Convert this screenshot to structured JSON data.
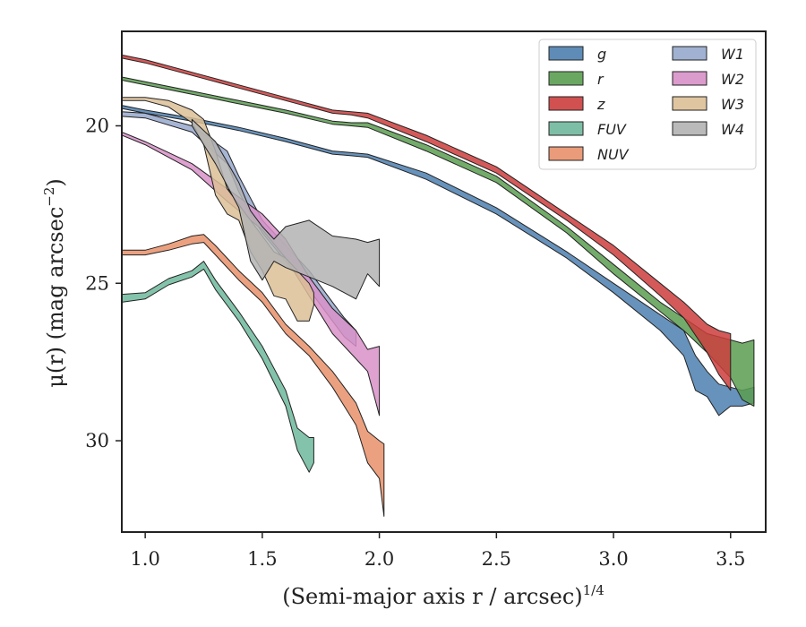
{
  "chart_data": {
    "type": "area",
    "xlabel": "(Semi-major axis r / arcsec)",
    "xlabel_exponent": "1/4",
    "ylabel_prefix": "μ(r) (mag arcsec",
    "ylabel_exponent": "−2",
    "ylabel_suffix": ")",
    "xlim": [
      0.9,
      3.65
    ],
    "ylim": [
      32.9,
      17.0
    ],
    "y_inverted": true,
    "xticks": [
      1.0,
      1.5,
      2.0,
      2.5,
      3.0,
      3.5
    ],
    "xtick_labels": [
      "1.0",
      "1.5",
      "2.0",
      "2.5",
      "3.0",
      "3.5"
    ],
    "yticks": [
      20,
      25,
      30
    ],
    "ytick_labels": [
      "20",
      "25",
      "30"
    ],
    "grid": false,
    "legend_position": "top-right",
    "legend_columns": 2,
    "series": [
      {
        "name": "g",
        "color": "#4c7faf",
        "x": [
          0.9,
          1.0,
          1.2,
          1.4,
          1.6,
          1.8,
          1.88,
          1.95,
          2.2,
          2.5,
          2.8,
          3.0,
          3.2,
          3.3,
          3.35,
          3.4,
          3.45,
          3.5,
          3.55,
          3.6
        ],
        "lo": [
          19.35,
          19.5,
          19.75,
          20.05,
          20.4,
          20.8,
          20.85,
          20.9,
          21.5,
          22.6,
          24.0,
          25.0,
          26.0,
          26.5,
          27.3,
          27.8,
          28.2,
          28.3,
          28.4,
          28.3
        ],
        "hi": [
          19.45,
          19.6,
          19.85,
          20.15,
          20.5,
          20.9,
          20.95,
          21.0,
          21.7,
          22.8,
          24.2,
          25.3,
          26.5,
          27.3,
          28.4,
          28.6,
          29.2,
          28.9,
          28.9,
          28.8
        ]
      },
      {
        "name": "r",
        "color": "#5a9e50",
        "x": [
          0.9,
          1.0,
          1.2,
          1.4,
          1.6,
          1.8,
          1.88,
          1.95,
          2.2,
          2.5,
          2.8,
          3.0,
          3.2,
          3.3,
          3.4,
          3.45,
          3.5,
          3.55,
          3.6
        ],
        "lo": [
          18.45,
          18.6,
          18.9,
          19.2,
          19.5,
          19.85,
          19.9,
          19.9,
          20.6,
          21.6,
          23.2,
          24.4,
          25.6,
          26.1,
          26.6,
          26.7,
          26.8,
          26.9,
          26.8
        ],
        "hi": [
          18.55,
          18.7,
          19.0,
          19.3,
          19.6,
          19.95,
          20.0,
          20.05,
          20.8,
          21.8,
          23.4,
          24.7,
          25.9,
          26.5,
          27.2,
          27.6,
          28.0,
          28.7,
          28.9
        ]
      },
      {
        "name": "z",
        "color": "#cc3d3d",
        "x": [
          0.9,
          1.0,
          1.2,
          1.4,
          1.6,
          1.8,
          1.88,
          1.95,
          2.2,
          2.5,
          2.8,
          3.0,
          3.2,
          3.3,
          3.4,
          3.45,
          3.5
        ],
        "lo": [
          17.75,
          17.9,
          18.3,
          18.7,
          19.1,
          19.5,
          19.55,
          19.6,
          20.3,
          21.3,
          22.8,
          23.8,
          25.0,
          25.6,
          26.3,
          26.5,
          26.6
        ],
        "hi": [
          17.85,
          18.0,
          18.4,
          18.8,
          19.2,
          19.6,
          19.65,
          19.75,
          20.5,
          21.5,
          23.0,
          24.1,
          25.4,
          26.1,
          27.2,
          27.9,
          28.4
        ]
      },
      {
        "name": "FUV",
        "color": "#6fb89c",
        "x": [
          0.9,
          1.0,
          1.1,
          1.2,
          1.25,
          1.3,
          1.4,
          1.5,
          1.6,
          1.65,
          1.7,
          1.72
        ],
        "lo": [
          25.35,
          25.3,
          24.85,
          24.6,
          24.3,
          24.9,
          25.9,
          27.0,
          28.4,
          29.6,
          29.9,
          29.9
        ],
        "hi": [
          25.6,
          25.5,
          25.05,
          24.8,
          24.55,
          25.2,
          26.2,
          27.4,
          28.9,
          30.3,
          31.0,
          30.7
        ]
      },
      {
        "name": "NUV",
        "color": "#e8906a",
        "x": [
          0.9,
          1.0,
          1.1,
          1.2,
          1.25,
          1.3,
          1.4,
          1.5,
          1.6,
          1.7,
          1.8,
          1.9,
          1.95,
          2.0,
          2.02
        ],
        "lo": [
          23.95,
          23.95,
          23.75,
          23.5,
          23.45,
          23.8,
          24.6,
          25.3,
          26.3,
          27.0,
          27.8,
          28.8,
          29.7,
          30.0,
          30.1
        ],
        "hi": [
          24.1,
          24.1,
          23.95,
          23.75,
          23.7,
          24.1,
          24.9,
          25.6,
          26.6,
          27.3,
          28.3,
          29.5,
          30.7,
          31.2,
          32.4
        ]
      },
      {
        "name": "W1",
        "color": "#96a8cc",
        "x": [
          0.9,
          1.0,
          1.2,
          1.35,
          1.4,
          1.45,
          1.5,
          1.6,
          1.7,
          1.8,
          1.85,
          1.9
        ],
        "lo": [
          19.55,
          19.6,
          20.0,
          20.8,
          21.6,
          22.3,
          23.0,
          23.8,
          24.6,
          25.6,
          26.1,
          26.5
        ],
        "hi": [
          19.7,
          19.75,
          20.2,
          21.2,
          22.1,
          22.8,
          23.4,
          24.3,
          25.2,
          26.2,
          26.7,
          27.0
        ]
      },
      {
        "name": "W2",
        "color": "#d890c8",
        "x": [
          0.9,
          1.0,
          1.2,
          1.35,
          1.5,
          1.6,
          1.7,
          1.8,
          1.9,
          1.95,
          2.0
        ],
        "lo": [
          20.2,
          20.5,
          21.2,
          22.0,
          22.8,
          23.6,
          24.8,
          25.8,
          26.5,
          27.1,
          27.0
        ],
        "hi": [
          20.3,
          20.6,
          21.4,
          22.4,
          23.3,
          24.2,
          25.4,
          26.6,
          27.4,
          27.8,
          29.2
        ]
      },
      {
        "name": "W3",
        "color": "#dcbf96",
        "x": [
          0.9,
          1.0,
          1.1,
          1.2,
          1.25,
          1.3,
          1.35,
          1.4,
          1.45,
          1.5,
          1.55,
          1.6,
          1.65,
          1.7,
          1.72
        ],
        "lo": [
          19.1,
          19.1,
          19.2,
          19.5,
          19.8,
          20.8,
          22.0,
          22.5,
          23.0,
          23.5,
          24.0,
          24.2,
          24.6,
          25.0,
          25.3
        ],
        "hi": [
          19.2,
          19.2,
          19.4,
          19.9,
          20.6,
          22.2,
          22.8,
          23.0,
          24.0,
          24.6,
          25.4,
          25.5,
          26.2,
          26.2,
          25.7
        ]
      },
      {
        "name": "W4",
        "color": "#b3b3b3",
        "x": [
          1.2,
          1.3,
          1.4,
          1.45,
          1.5,
          1.55,
          1.6,
          1.7,
          1.8,
          1.9,
          1.95,
          2.0
        ],
        "lo": [
          19.8,
          20.5,
          21.8,
          22.7,
          23.2,
          23.6,
          23.2,
          23.0,
          23.5,
          23.6,
          23.7,
          23.6
        ],
        "hi": [
          20.0,
          21.2,
          22.6,
          24.3,
          24.9,
          24.3,
          24.5,
          24.8,
          25.1,
          25.5,
          24.7,
          25.1
        ]
      }
    ]
  }
}
